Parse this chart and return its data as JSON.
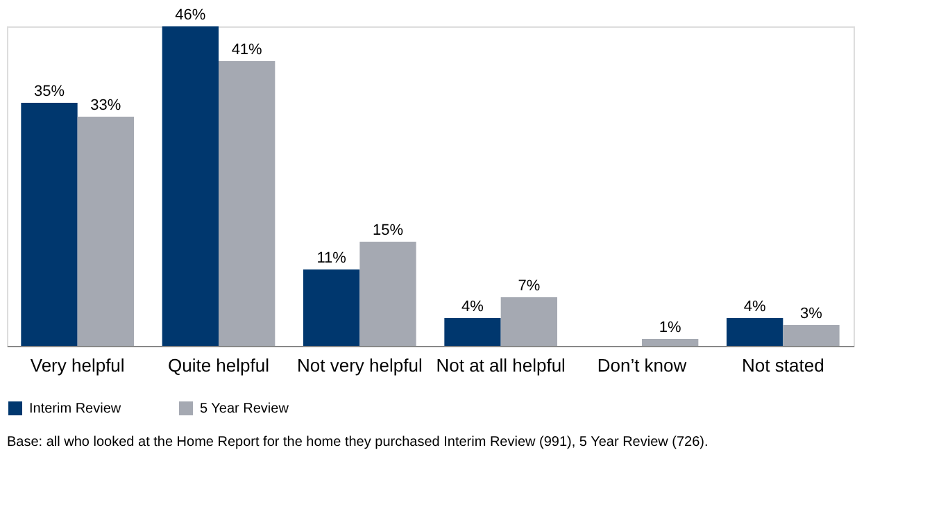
{
  "chart_data": {
    "type": "bar",
    "categories": [
      "Very helpful",
      "Quite helpful",
      "Not very helpful",
      "Not at all helpful",
      "Don’t know",
      "Not stated"
    ],
    "series": [
      {
        "name": "Interim Review",
        "color": "#00376e",
        "values": [
          35,
          46,
          11,
          4,
          null,
          4
        ],
        "value_labels": [
          "35%",
          "46%",
          "11%",
          "4%",
          null,
          "4%"
        ]
      },
      {
        "name": "5 Year Review",
        "color": "#a5a9b2",
        "values": [
          33,
          41,
          15,
          7,
          1,
          3
        ],
        "value_labels": [
          "33%",
          "41%",
          "15%",
          "7%",
          "1%",
          "3%"
        ]
      }
    ],
    "legend": "bottom",
    "grid": false,
    "annotations": [
      "Base: all who looked at the Home Report for the home they purchased Interim Review (991), 5 Year Review (726)."
    ]
  }
}
